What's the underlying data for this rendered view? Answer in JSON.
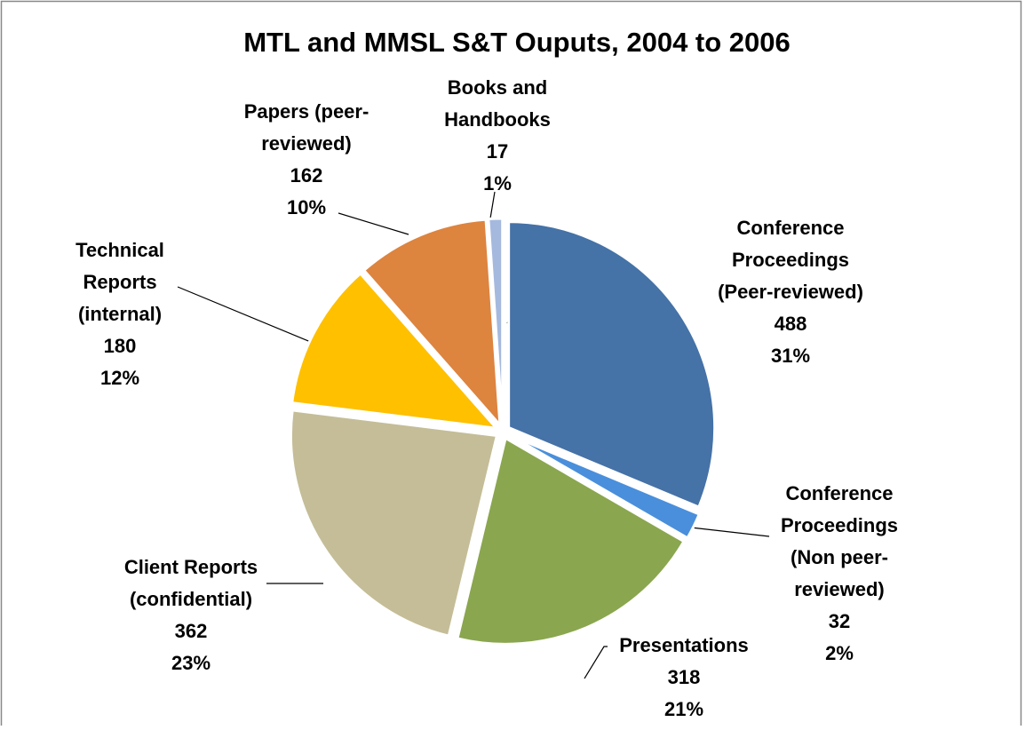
{
  "chart_data": {
    "type": "pie",
    "title": "MTL and MMSL S&T Ouputs, 2004 to 2006",
    "categories": [
      [
        "Conference",
        "Proceedings",
        "(Peer-reviewed)"
      ],
      [
        "Conference",
        "Proceedings",
        "(Non peer-",
        "reviewed)"
      ],
      [
        "Presentations"
      ],
      [
        "Client Reports",
        "(confidential)"
      ],
      [
        "Technical",
        "Reports",
        "(internal)"
      ],
      [
        "Papers (peer-",
        "reviewed)"
      ],
      [
        "Books and",
        "Handbooks"
      ]
    ],
    "values": [
      488,
      32,
      318,
      362,
      180,
      162,
      17
    ],
    "percent_labels": [
      "31%",
      "2%",
      "21%",
      "23%",
      "12%",
      "10%",
      "1%"
    ],
    "colors": [
      "#4572a7",
      "#4a8fdb",
      "#8aa64f",
      "#c4bd97",
      "#ffc000",
      "#dd843f",
      "#a5b9de"
    ]
  }
}
